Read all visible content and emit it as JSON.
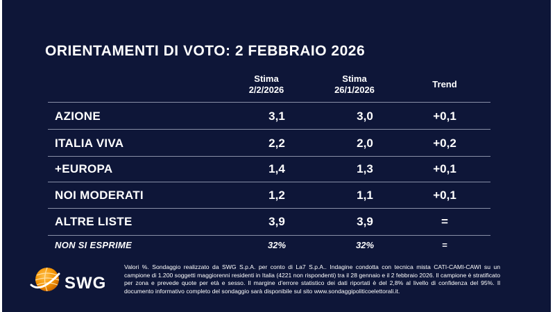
{
  "title": "ORIENTAMENTI DI VOTO: 2 FEBBRAIO 2026",
  "columns": {
    "stima_current": {
      "line1": "Stima",
      "line2": "2/2/2026"
    },
    "stima_previous": {
      "line1": "Stima",
      "line2": "26/1/2026"
    },
    "trend": "Trend"
  },
  "rows": [
    {
      "label": "AZIONE",
      "current": "3,1",
      "previous": "3,0",
      "trend": "+0,1"
    },
    {
      "label": "ITALIA VIVA",
      "current": "2,2",
      "previous": "2,0",
      "trend": "+0,2"
    },
    {
      "label": "+EUROPA",
      "current": "1,4",
      "previous": "1,3",
      "trend": "+0,1"
    },
    {
      "label": "NOI MODERATI",
      "current": "1,2",
      "previous": "1,1",
      "trend": "+0,1"
    },
    {
      "label": "ALTRE LISTE",
      "current": "3,9",
      "previous": "3,9",
      "trend": "="
    },
    {
      "label": "NON SI ESPRIME",
      "current": "32%",
      "previous": "32%",
      "trend": "="
    }
  ],
  "logo": {
    "text": "SWG",
    "accent_color": "#f39200"
  },
  "footnote": "Valori %. Sondaggio realizzato da SWG S.p.A. per conto di La7 S.p.A.. Indagine condotta con tecnica mista CATI-CAMI-CAWI su un campione di 1.200 soggetti maggiorenni residenti in Italia (4221 non rispondenti) tra il 28 gennaio e il 2 febbraio 2026. Il campione è stratificato per zona e prevede quote per età e sesso. Il margine d'errore statistico dei dati riportati è del 2,8% al livello di confidenza del 95%. Il documento informativo completo del sondaggio sarà disponibile sul sito www.sondaggipoliticoelettorali.it.",
  "colors": {
    "background": "#0e1638",
    "text": "#ffffff"
  }
}
